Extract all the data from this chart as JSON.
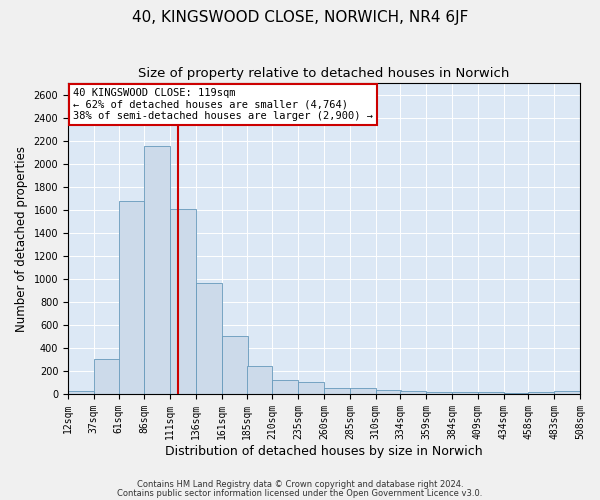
{
  "title": "40, KINGSWOOD CLOSE, NORWICH, NR4 6JF",
  "subtitle": "Size of property relative to detached houses in Norwich",
  "xlabel": "Distribution of detached houses by size in Norwich",
  "ylabel": "Number of detached properties",
  "footer1": "Contains HM Land Registry data © Crown copyright and database right 2024.",
  "footer2": "Contains public sector information licensed under the Open Government Licence v3.0.",
  "annotation_line1": "40 KINGSWOOD CLOSE: 119sqm",
  "annotation_line2": "← 62% of detached houses are smaller (4,764)",
  "annotation_line3": "38% of semi-detached houses are larger (2,900) →",
  "bar_left_edges": [
    12,
    37,
    61,
    86,
    111,
    136,
    161,
    185,
    210,
    235,
    260,
    285,
    310,
    334,
    359,
    384,
    409,
    434,
    458,
    483
  ],
  "bar_heights": [
    25,
    300,
    1680,
    2150,
    1610,
    960,
    505,
    240,
    120,
    100,
    50,
    50,
    35,
    30,
    20,
    20,
    20,
    5,
    20,
    25
  ],
  "bin_width": 25,
  "bar_color": "#ccdaea",
  "bar_edge_color": "#6699bb",
  "vline_color": "#cc0000",
  "vline_x": 119,
  "ylim": [
    0,
    2700
  ],
  "yticks": [
    0,
    200,
    400,
    600,
    800,
    1000,
    1200,
    1400,
    1600,
    1800,
    2000,
    2200,
    2400,
    2600
  ],
  "xtick_labels": [
    "12sqm",
    "37sqm",
    "61sqm",
    "86sqm",
    "111sqm",
    "136sqm",
    "161sqm",
    "185sqm",
    "210sqm",
    "235sqm",
    "260sqm",
    "285sqm",
    "310sqm",
    "334sqm",
    "359sqm",
    "384sqm",
    "409sqm",
    "434sqm",
    "458sqm",
    "483sqm",
    "508sqm"
  ],
  "background_color": "#dce8f5",
  "fig_background_color": "#f0f0f0",
  "annotation_box_color": "#ffffff",
  "annotation_box_edgecolor": "#cc0000",
  "title_fontsize": 11,
  "subtitle_fontsize": 9.5,
  "xlabel_fontsize": 9,
  "ylabel_fontsize": 8.5,
  "tick_fontsize": 7,
  "footer_fontsize": 6,
  "annotation_fontsize": 7.5
}
